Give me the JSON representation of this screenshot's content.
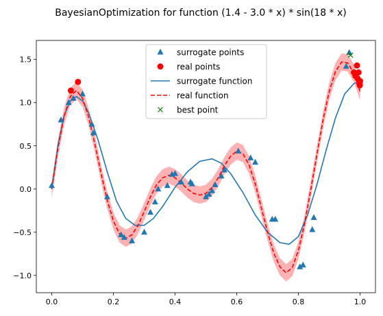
{
  "chart_data": {
    "type": "scatter",
    "title": "BayesianOptimization for function (1.4 - 3.0 * x) * sin(18 * x)",
    "xlabel": "",
    "ylabel": "",
    "xlim": [
      -0.05,
      1.05
    ],
    "ylim": [
      -1.2,
      1.72
    ],
    "xticks": [
      0.0,
      0.2,
      0.4,
      0.6,
      0.8,
      1.0
    ],
    "xtick_labels": [
      "0.0",
      "0.2",
      "0.4",
      "0.6",
      "0.8",
      "1.0"
    ],
    "yticks": [
      -1.0,
      -0.5,
      0.0,
      0.5,
      1.0,
      1.5
    ],
    "ytick_labels": [
      "−1.0",
      "−0.5",
      "0.0",
      "0.5",
      "1.0",
      "1.5"
    ],
    "grid": false,
    "legend_position": "top-center",
    "real_function_band": 0.1,
    "series": [
      {
        "name": "surrogate points",
        "kind": "scatter",
        "marker": "triangle",
        "color": "#1f77b4",
        "x": [
          0.0,
          0.03,
          0.055,
          0.07,
          0.1,
          0.13,
          0.135,
          0.18,
          0.225,
          0.235,
          0.26,
          0.3,
          0.32,
          0.335,
          0.345,
          0.375,
          0.39,
          0.4,
          0.42,
          0.45,
          0.455,
          0.5,
          0.51,
          0.52,
          0.53,
          0.55,
          0.56,
          0.605,
          0.645,
          0.66,
          0.715,
          0.725,
          0.805,
          0.815,
          0.845,
          0.85,
          0.955,
          0.965
        ],
        "y": [
          0.04,
          0.8,
          1.0,
          1.05,
          1.1,
          0.75,
          0.65,
          -0.09,
          -0.53,
          -0.56,
          -0.6,
          -0.5,
          -0.27,
          -0.15,
          0.0,
          0.04,
          0.17,
          0.18,
          0.08,
          0.08,
          0.06,
          -0.09,
          -0.06,
          -0.02,
          0.05,
          0.15,
          0.22,
          0.44,
          0.36,
          0.31,
          -0.35,
          -0.35,
          -0.9,
          -0.88,
          -0.47,
          -0.33,
          1.42,
          1.58
        ]
      },
      {
        "name": "real points",
        "kind": "scatter",
        "marker": "circle",
        "color": "#ff0000",
        "x": [
          0.062,
          0.085,
          0.98,
          0.985,
          0.99,
          0.992,
          0.995,
          0.997,
          0.998,
          0.999,
          1.0
        ],
        "y": [
          1.14,
          1.24,
          1.35,
          1.31,
          1.43,
          1.28,
          1.35,
          1.25,
          1.22,
          1.2,
          1.25
        ]
      },
      {
        "name": "surrogate function",
        "kind": "line",
        "color": "#1f77b4",
        "x": [
          0.0,
          0.02,
          0.04,
          0.06,
          0.08,
          0.1,
          0.12,
          0.15,
          0.18,
          0.21,
          0.24,
          0.27,
          0.3,
          0.33,
          0.36,
          0.4,
          0.44,
          0.48,
          0.52,
          0.55,
          0.58,
          0.62,
          0.66,
          0.7,
          0.74,
          0.77,
          0.8,
          0.83,
          0.86,
          0.89,
          0.92,
          0.95,
          0.98,
          1.0
        ],
        "y": [
          0.0,
          0.5,
          0.85,
          1.02,
          1.07,
          1.02,
          0.88,
          0.57,
          0.2,
          -0.14,
          -0.34,
          -0.42,
          -0.42,
          -0.34,
          -0.2,
          0.02,
          0.2,
          0.32,
          0.35,
          0.3,
          0.18,
          -0.04,
          -0.3,
          -0.5,
          -0.62,
          -0.64,
          -0.55,
          -0.3,
          0.05,
          0.45,
          0.82,
          1.1,
          1.22,
          1.25
        ]
      },
      {
        "name": "real function",
        "kind": "line",
        "dashed": true,
        "color": "#ff0000",
        "x": [
          0.0,
          0.02,
          0.04,
          0.06,
          0.08,
          0.1,
          0.12,
          0.14,
          0.16,
          0.18,
          0.2,
          0.22,
          0.24,
          0.26,
          0.28,
          0.3,
          0.32,
          0.34,
          0.36,
          0.38,
          0.4,
          0.42,
          0.44,
          0.46,
          0.48,
          0.5,
          0.52,
          0.54,
          0.56,
          0.58,
          0.6,
          0.62,
          0.64,
          0.66,
          0.68,
          0.7,
          0.72,
          0.74,
          0.76,
          0.78,
          0.8,
          0.82,
          0.84,
          0.86,
          0.88,
          0.9,
          0.92,
          0.94,
          0.96,
          0.98,
          1.0
        ],
        "y": [
          0.0,
          0.47,
          0.84,
          1.07,
          1.14,
          1.05,
          0.83,
          0.52,
          0.18,
          -0.13,
          -0.37,
          -0.52,
          -0.57,
          -0.53,
          -0.42,
          -0.26,
          -0.09,
          0.05,
          0.13,
          0.16,
          0.13,
          0.07,
          0.0,
          -0.05,
          -0.07,
          -0.05,
          0.02,
          0.13,
          0.27,
          0.38,
          0.44,
          0.41,
          0.28,
          0.06,
          -0.22,
          -0.5,
          -0.74,
          -0.9,
          -0.97,
          -0.91,
          -0.71,
          -0.4,
          -0.01,
          0.4,
          0.8,
          1.13,
          1.36,
          1.47,
          1.46,
          1.34,
          1.13
        ]
      },
      {
        "name": "best point",
        "kind": "scatter",
        "marker": "x",
        "color": "#008000",
        "x": [
          0.969
        ],
        "y": [
          1.55
        ]
      }
    ]
  }
}
